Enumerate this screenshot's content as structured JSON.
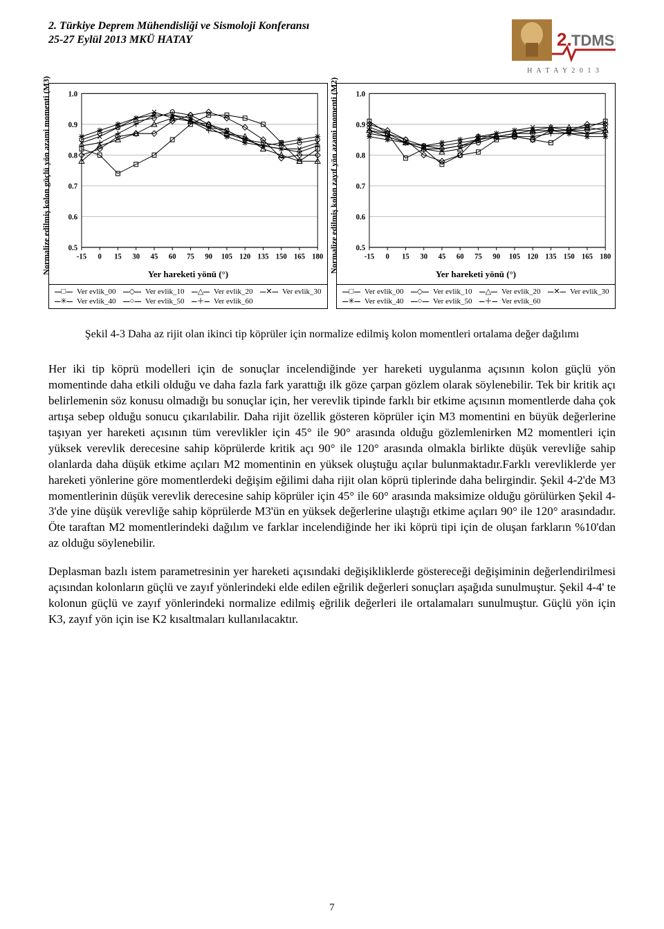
{
  "header": {
    "line1": "2. Türkiye Deprem Mühendisliği ve Sismoloji Konferansı",
    "line2": "25-27 Eylül 2013  MKÜ  HATAY",
    "logo_sub": "H A T A Y   2 0 1 3",
    "logo_colors": {
      "bronze": "#a97b3a",
      "red": "#b0201c",
      "gray": "#6b6b6b"
    }
  },
  "charts": {
    "common": {
      "xlim": [
        -15,
        180
      ],
      "ylim": [
        0.5,
        1.0
      ],
      "xticks": [
        -15,
        0,
        15,
        30,
        45,
        60,
        75,
        90,
        105,
        120,
        135,
        150,
        165,
        180
      ],
      "yticks": [
        0.5,
        0.6,
        0.7,
        0.8,
        0.9,
        1.0
      ],
      "xlabel": "Yer hareketi yönü (°)",
      "grid_color": "#bcbcbc",
      "axis_color": "#000000",
      "axis_fontsize": 11,
      "label_fontsize": 13,
      "series_markers": [
        "square",
        "diamond",
        "triangle",
        "x",
        "star",
        "circle",
        "plus"
      ],
      "series_labels": [
        "Ver evlik_00",
        "Ver evlik_10",
        "Ver evlik_20",
        "Ver evlik_30",
        "Ver evlik_40",
        "Ver evlik_50",
        "Ver evlik_60"
      ]
    },
    "left": {
      "ylabel": "Normalize edilmiş kolon güçlü yön azami momenti (M3)",
      "series": [
        {
          "y": [
            0.82,
            0.8,
            0.74,
            0.77,
            0.8,
            0.85,
            0.9,
            0.93,
            0.93,
            0.92,
            0.9,
            0.84,
            0.78,
            0.82
          ]
        },
        {
          "y": [
            0.8,
            0.82,
            0.86,
            0.87,
            0.87,
            0.91,
            0.93,
            0.94,
            0.92,
            0.89,
            0.85,
            0.79,
            0.8,
            0.8
          ]
        },
        {
          "y": [
            0.78,
            0.83,
            0.85,
            0.87,
            0.9,
            0.92,
            0.91,
            0.9,
            0.87,
            0.86,
            0.82,
            0.8,
            0.78,
            0.78
          ]
        },
        {
          "y": [
            0.84,
            0.86,
            0.89,
            0.92,
            0.94,
            0.92,
            0.91,
            0.89,
            0.88,
            0.85,
            0.83,
            0.82,
            0.82,
            0.84
          ]
        },
        {
          "y": [
            0.86,
            0.88,
            0.9,
            0.92,
            0.93,
            0.93,
            0.92,
            0.89,
            0.86,
            0.84,
            0.83,
            0.84,
            0.85,
            0.86
          ]
        },
        {
          "y": [
            0.85,
            0.87,
            0.89,
            0.91,
            0.92,
            0.94,
            0.93,
            0.9,
            0.88,
            0.85,
            0.84,
            0.83,
            0.84,
            0.85
          ]
        },
        {
          "y": [
            0.83,
            0.84,
            0.87,
            0.9,
            0.93,
            0.93,
            0.91,
            0.88,
            0.87,
            0.85,
            0.83,
            0.82,
            0.81,
            0.83
          ]
        }
      ]
    },
    "right": {
      "ylabel": "Normalize edilmiş kolon zayıf yön azami momenti (M2)",
      "series": [
        {
          "y": [
            0.91,
            0.87,
            0.79,
            0.82,
            0.77,
            0.8,
            0.81,
            0.85,
            0.86,
            0.85,
            0.84,
            0.88,
            0.89,
            0.91
          ]
        },
        {
          "y": [
            0.9,
            0.88,
            0.85,
            0.8,
            0.78,
            0.8,
            0.86,
            0.86,
            0.86,
            0.85,
            0.88,
            0.88,
            0.9,
            0.9
          ]
        },
        {
          "y": [
            0.88,
            0.87,
            0.84,
            0.82,
            0.81,
            0.82,
            0.85,
            0.86,
            0.87,
            0.88,
            0.89,
            0.89,
            0.89,
            0.88
          ]
        },
        {
          "y": [
            0.87,
            0.86,
            0.84,
            0.83,
            0.83,
            0.84,
            0.85,
            0.87,
            0.88,
            0.89,
            0.89,
            0.88,
            0.87,
            0.87
          ]
        },
        {
          "y": [
            0.86,
            0.85,
            0.84,
            0.83,
            0.84,
            0.85,
            0.86,
            0.87,
            0.88,
            0.88,
            0.88,
            0.87,
            0.86,
            0.86
          ]
        },
        {
          "y": [
            0.89,
            0.87,
            0.85,
            0.83,
            0.82,
            0.83,
            0.84,
            0.86,
            0.87,
            0.87,
            0.88,
            0.88,
            0.88,
            0.89
          ]
        },
        {
          "y": [
            0.88,
            0.86,
            0.84,
            0.82,
            0.82,
            0.83,
            0.85,
            0.86,
            0.86,
            0.86,
            0.87,
            0.87,
            0.87,
            0.88
          ]
        }
      ]
    }
  },
  "caption": "Şekil 4-3 Daha az rijit olan ikinci tip köprüler için normalize edilmiş kolon momentleri ortalama değer dağılımı",
  "paragraphs": {
    "p1": "Her iki tip köprü modelleri için de sonuçlar incelendiğinde yer hareketi uygulanma açısının kolon güçlü yön momentinde daha etkili olduğu ve daha fazla fark yarattığı ilk göze çarpan gözlem olarak söylenebilir. Tek bir kritik açı belirlemenin söz konusu olmadığı bu sonuçlar için, her verevlik tipinde farklı bir etkime açısının momentlerde daha çok artışa sebep olduğu sonucu çıkarılabilir. Daha rijit özellik gösteren köprüler için M3 momentini en büyük değerlerine taşıyan yer hareketi açısının tüm verevlikler için 45° ile 90° arasında olduğu gözlemlenirken M2 momentleri için yüksek verevlik derecesine sahip köprülerde kritik açı 90° ile 120° arasında olmakla birlikte düşük verevliğe sahip olanlarda daha düşük etkime açıları M2 momentinin en yüksek oluştuğu açılar bulunmaktadır.Farklı verevliklerde yer hareketi yönlerine göre momentlerdeki değişim eğilimi daha rijit olan köprü tiplerinde daha belirgindir. Şekil 4-2'de M3 momentlerinin düşük verevlik derecesine sahip köprüler için 45° ile 60° arasında maksimize olduğu görülürken Şekil 4-3'de yine düşük verevliğe sahip köprülerde M3'ün en yüksek değerlerine ulaştığı etkime açıları 90° ile 120° arasındadır. Öte taraftan M2 momentlerindeki dağılım ve farklar incelendiğinde her iki köprü tipi için de oluşan farkların %10'dan az olduğu söylenebilir.",
    "p2": "Deplasman bazlı istem parametresinin yer hareketi açısındaki değişikliklerde göstereceği değişiminin değerlendirilmesi açısından kolonların güçlü ve zayıf yönlerindeki elde edilen eğrilik değerleri sonuçları aşağıda sunulmuştur. Şekil 4-4' te kolonun güçlü ve zayıf yönlerindeki normalize edilmiş eğrilik değerleri ile ortalamaları sunulmuştur. Güçlü yön için K3, zayıf yön için ise K2 kısaltmaları kullanılacaktır."
  },
  "pagenum": "7"
}
